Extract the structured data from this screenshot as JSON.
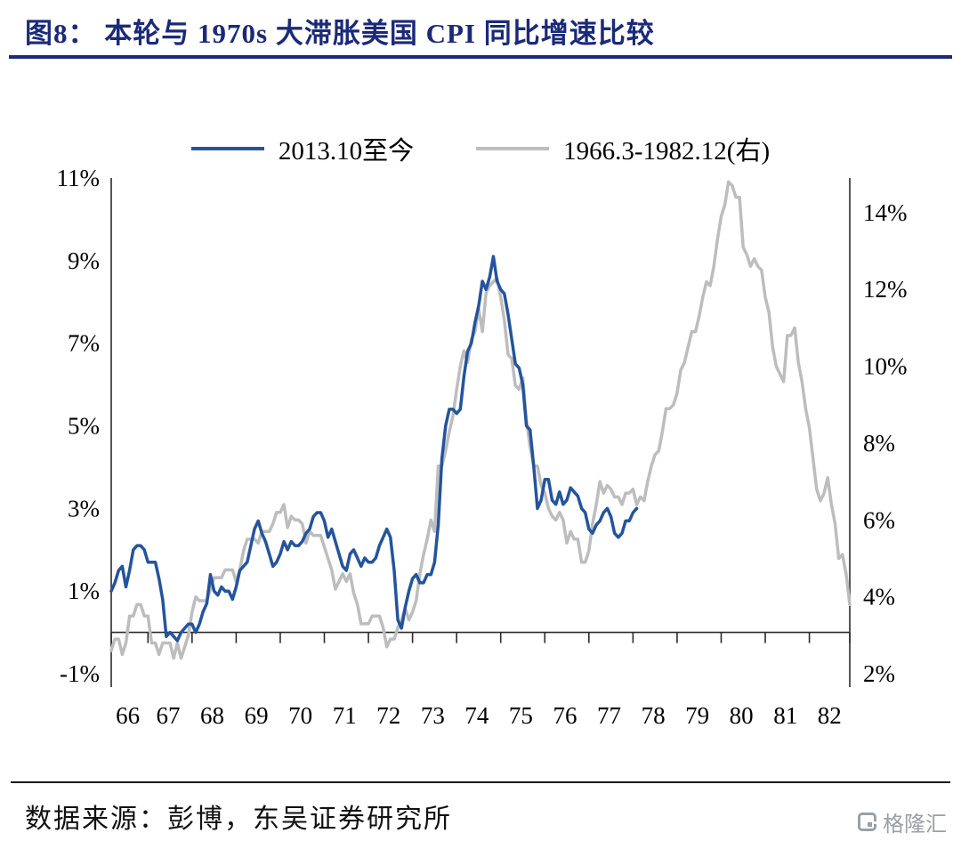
{
  "header": {
    "title": "图8： 本轮与 1970s 大滞胀美国 CPI 同比增速比较"
  },
  "footer": {
    "source": "数据来源：彭博，东吴证券研究所",
    "logo_text": "格隆汇"
  },
  "colors": {
    "title_navy": "#1b2a78",
    "axis": "#2b2b2b",
    "blue_line": "#24549C",
    "gray_line": "#BDBDBD"
  },
  "chart_data": {
    "type": "line",
    "title": "图8： 本轮与 1970s 大滞胀美国 CPI 同比增速比较",
    "legend_position": "top-center",
    "grid": false,
    "left_axis": {
      "min": -1,
      "max": 11,
      "tick_values": [
        11,
        9,
        7,
        5,
        3,
        1,
        -1
      ],
      "unit": "%"
    },
    "right_axis": {
      "min": 2,
      "max": 14.9,
      "tick_values": [
        14,
        12,
        10,
        8,
        6,
        4,
        2
      ],
      "unit": "%"
    },
    "x_axis": {
      "labels": [
        "66",
        "67",
        "68",
        "69",
        "70",
        "71",
        "72",
        "73",
        "74",
        "75",
        "76",
        "77",
        "78",
        "79",
        "80",
        "81",
        "82"
      ]
    },
    "series": [
      {
        "name": "2013.10至今",
        "axis": "left",
        "color": "#24549C",
        "width": 3.5,
        "start": "2013-10",
        "freq": "monthly",
        "values": [
          1.0,
          1.2,
          1.5,
          1.6,
          1.1,
          1.5,
          2.0,
          2.1,
          2.1,
          2.0,
          1.7,
          1.7,
          1.7,
          1.3,
          0.8,
          -0.1,
          0.0,
          -0.1,
          -0.2,
          0.0,
          0.1,
          0.2,
          0.2,
          0.0,
          0.2,
          0.5,
          0.7,
          1.4,
          1.0,
          0.9,
          1.1,
          1.0,
          1.0,
          0.8,
          1.1,
          1.5,
          1.6,
          1.7,
          2.1,
          2.5,
          2.7,
          2.4,
          2.2,
          1.9,
          1.6,
          1.7,
          1.9,
          2.2,
          2.0,
          2.2,
          2.1,
          2.1,
          2.2,
          2.4,
          2.5,
          2.8,
          2.9,
          2.9,
          2.7,
          2.3,
          2.5,
          2.2,
          1.9,
          1.6,
          1.5,
          1.9,
          2.0,
          1.8,
          1.6,
          1.8,
          1.7,
          1.7,
          1.8,
          2.1,
          2.3,
          2.5,
          2.3,
          1.5,
          0.3,
          0.1,
          0.6,
          1.0,
          1.3,
          1.4,
          1.2,
          1.2,
          1.4,
          1.4,
          1.7,
          2.6,
          4.2,
          5.0,
          5.4,
          5.4,
          5.3,
          5.4,
          6.2,
          6.8,
          7.0,
          7.5,
          7.9,
          8.5,
          8.3,
          8.6,
          9.1,
          8.5,
          8.3,
          8.2,
          7.7,
          7.1,
          6.5,
          6.4,
          6.0,
          5.0,
          4.9,
          4.0,
          3.0,
          3.2,
          3.7,
          3.7,
          3.2,
          3.1,
          3.4,
          3.1,
          3.2,
          3.5,
          3.4,
          3.3,
          3.0,
          2.9,
          2.5,
          2.4,
          2.6,
          2.7,
          2.9,
          3.0,
          2.8,
          2.4,
          2.3,
          2.4,
          2.7,
          2.7,
          2.9,
          3.0
        ]
      },
      {
        "name": "1966.3-1982.12(右)",
        "axis": "right",
        "color": "#BDBDBD",
        "width": 3.5,
        "start": "1966-03",
        "freq": "monthly",
        "values": [
          2.6,
          2.9,
          2.9,
          2.5,
          2.8,
          3.5,
          3.5,
          3.8,
          3.8,
          3.5,
          3.5,
          2.8,
          2.8,
          2.5,
          2.8,
          2.8,
          2.8,
          2.4,
          2.8,
          2.4,
          2.7,
          3.0,
          3.6,
          4.0,
          3.9,
          3.9,
          3.9,
          4.2,
          4.5,
          4.5,
          4.5,
          4.7,
          4.7,
          4.7,
          4.4,
          4.7,
          5.2,
          5.5,
          5.5,
          5.5,
          5.4,
          5.7,
          5.7,
          5.7,
          5.9,
          6.2,
          6.2,
          6.4,
          5.8,
          6.1,
          6.0,
          6.0,
          5.9,
          5.4,
          5.7,
          5.6,
          5.6,
          5.6,
          5.3,
          5.0,
          4.7,
          4.2,
          4.4,
          4.6,
          4.4,
          4.6,
          4.1,
          3.8,
          3.3,
          3.3,
          3.3,
          3.5,
          3.5,
          3.5,
          3.2,
          2.7,
          2.9,
          2.9,
          3.2,
          3.4,
          3.7,
          3.4,
          3.6,
          3.9,
          4.6,
          5.1,
          5.5,
          6.0,
          5.7,
          7.4,
          7.4,
          7.8,
          8.3,
          8.7,
          9.4,
          10.0,
          10.4,
          10.1,
          10.7,
          10.9,
          11.5,
          10.9,
          11.9,
          12.1,
          12.2,
          12.3,
          11.8,
          11.2,
          10.3,
          10.2,
          9.5,
          9.4,
          9.7,
          8.6,
          7.9,
          7.4,
          7.4,
          6.9,
          6.7,
          6.3,
          6.1,
          6.0,
          6.2,
          6.0,
          5.4,
          5.7,
          5.5,
          5.5,
          4.9,
          4.9,
          5.2,
          5.9,
          6.4,
          7.0,
          6.7,
          6.9,
          6.8,
          6.6,
          6.6,
          6.4,
          6.7,
          6.7,
          6.8,
          6.4,
          6.6,
          6.5,
          7.0,
          7.4,
          7.7,
          7.8,
          8.3,
          8.9,
          8.9,
          9.0,
          9.3,
          9.9,
          10.1,
          10.5,
          10.9,
          10.9,
          11.3,
          11.8,
          12.2,
          12.1,
          12.6,
          13.3,
          13.9,
          14.2,
          14.8,
          14.7,
          14.4,
          14.4,
          13.1,
          12.9,
          12.6,
          12.8,
          12.6,
          12.5,
          11.8,
          11.4,
          10.5,
          10.0,
          9.8,
          9.6,
          10.8,
          10.8,
          11.0,
          10.1,
          9.6,
          8.9,
          8.4,
          7.6,
          6.8,
          6.5,
          6.7,
          7.1,
          6.4,
          5.9,
          5.0,
          5.1,
          4.6,
          3.8
        ]
      }
    ]
  }
}
